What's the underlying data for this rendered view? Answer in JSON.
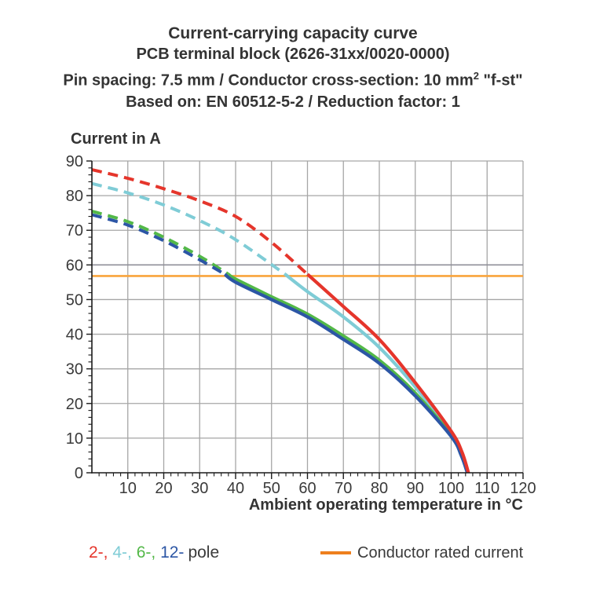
{
  "title_block": {
    "line1": "Current-carrying capacity curve",
    "line2": "PCB terminal block (2626-31xx/0020-0000)",
    "line3_pre": "Pin spacing: 7.5 mm / Conductor cross-section: 10 mm",
    "line3_sup": "2",
    "line3_post": " \"f-st\"",
    "line4": "Based on: EN 60512-5-2 / Reduction factor: 1"
  },
  "chart_data": {
    "type": "line",
    "title": "Current-carrying capacity curve",
    "subtitle1": "PCB terminal block (2626-31xx/0020-0000)",
    "subtitle2": "Pin spacing: 7.5 mm / Conductor cross-section: 10 mm2 \"f-st\"",
    "subtitle3": "Based on: EN 60512-5-2 / Reduction factor: 1",
    "ylabel": "Current in A",
    "xlabel": "Ambient operating temperature in °C",
    "xlim": [
      0,
      120
    ],
    "ylim": [
      0,
      90
    ],
    "x_ticks": [
      10,
      20,
      30,
      40,
      50,
      60,
      70,
      80,
      90,
      100,
      110,
      120
    ],
    "y_ticks": [
      0,
      10,
      20,
      30,
      40,
      50,
      60,
      70,
      80,
      90
    ],
    "minor_tick_step": 2,
    "grid": true,
    "grid_color": "#a6a6a6",
    "emphasis_gridline_y": 60,
    "emphasis_gridline_color": "#8f8f99",
    "axis_color": "#1a1a1a",
    "tick_label_color": "#3a3a3a",
    "rated_current_line": {
      "value": 56.8,
      "color": "#f9a43c",
      "label": "Conductor rated current"
    },
    "series": [
      {
        "name": "2-pole",
        "color": "#e5352b",
        "z": 4,
        "dashed_points": [
          [
            0,
            87.5
          ],
          [
            10,
            85
          ],
          [
            20,
            82
          ],
          [
            30,
            78.5
          ],
          [
            40,
            74
          ],
          [
            50,
            66.5
          ],
          [
            60,
            57.3
          ]
        ],
        "solid_points": [
          [
            60,
            57.3
          ],
          [
            70,
            48
          ],
          [
            80,
            38.5
          ],
          [
            90,
            26
          ],
          [
            100,
            12
          ],
          [
            103,
            6
          ],
          [
            104.8,
            0
          ]
        ]
      },
      {
        "name": "4-pole",
        "color": "#7fccd6",
        "z": 1,
        "dashed_points": [
          [
            0,
            83.5
          ],
          [
            10,
            80.8
          ],
          [
            20,
            77.3
          ],
          [
            30,
            72.8
          ],
          [
            40,
            67.3
          ],
          [
            53.8,
            57.3
          ]
        ],
        "solid_points": [
          [
            53.8,
            57.3
          ],
          [
            60,
            52.3
          ],
          [
            70,
            45
          ],
          [
            80,
            36.2
          ],
          [
            90,
            24.8
          ],
          [
            100,
            11.5
          ],
          [
            103,
            5.5
          ],
          [
            104.7,
            0
          ]
        ]
      },
      {
        "name": "6-pole",
        "color": "#53b848",
        "z": 2,
        "dashed_points": [
          [
            0,
            75.5
          ],
          [
            10,
            72.5
          ],
          [
            20,
            68
          ],
          [
            30,
            62.5
          ],
          [
            38,
            57.3
          ]
        ],
        "solid_points": [
          [
            38,
            57.3
          ],
          [
            40,
            55.9
          ],
          [
            50,
            50.8
          ],
          [
            60,
            45.8
          ],
          [
            70,
            39.5
          ],
          [
            80,
            32.5
          ],
          [
            90,
            23
          ],
          [
            100,
            10.8
          ],
          [
            103,
            5
          ],
          [
            104.6,
            0
          ]
        ]
      },
      {
        "name": "12-pole",
        "color": "#2c56a5",
        "z": 3,
        "dashed_points": [
          [
            0,
            74.5
          ],
          [
            10,
            71.5
          ],
          [
            20,
            67
          ],
          [
            30,
            61.5
          ],
          [
            37,
            57.3
          ]
        ],
        "solid_points": [
          [
            37,
            57.3
          ],
          [
            40,
            55
          ],
          [
            50,
            50
          ],
          [
            60,
            45
          ],
          [
            70,
            38.5
          ],
          [
            80,
            31.6
          ],
          [
            90,
            22.2
          ],
          [
            100,
            10.5
          ],
          [
            102.8,
            5
          ],
          [
            104.5,
            0
          ]
        ]
      }
    ],
    "legend_position": "bottom"
  },
  "legend": {
    "pole_items": [
      {
        "label": "2-,",
        "color": "#e5352b"
      },
      {
        "label": "4-,",
        "color": "#7fccd6"
      },
      {
        "label": "6-,",
        "color": "#53b848"
      },
      {
        "label": "12-",
        "color": "#2c56a5"
      }
    ],
    "pole_suffix": "pole",
    "rated_label": "Conductor rated current",
    "rated_swatch_color": "#ee7f1e"
  }
}
